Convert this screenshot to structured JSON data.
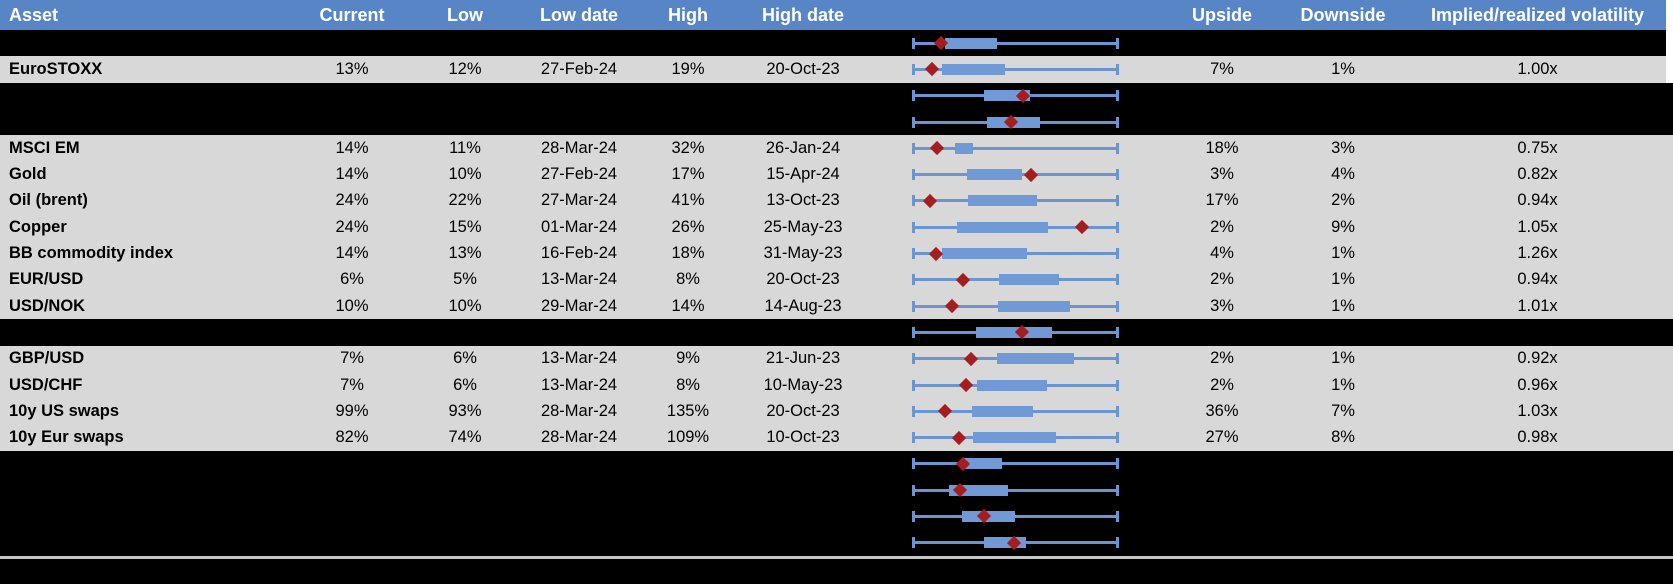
{
  "header": {
    "columns": [
      "Asset",
      "Current",
      "Low",
      "Low date",
      "High",
      "High date",
      "",
      "Upside",
      "Downside",
      "Implied/realized volatility"
    ]
  },
  "colors": {
    "header_bg": "#5885C6",
    "header_text": "#FFFFFF",
    "row_bg": "#D8D8D8",
    "page_bg": "#000000",
    "whisker_blue": "#6C94CE",
    "box_blue": "#7099D6",
    "marker_red": "#A41E21",
    "divider_gray": "#C6C6C6"
  },
  "rows": [
    {
      "type": "chart",
      "plot": {
        "box": [
          0.157,
          0.41
        ],
        "marker": 0.136
      }
    },
    {
      "type": "data",
      "asset": "EuroSTOXX",
      "current": "13%",
      "low": "12%",
      "low_date": "27-Feb-24",
      "high": "19%",
      "high_date": "20-Oct-23",
      "upside": "7%",
      "downside": "1%",
      "implied_realized": "1.00x",
      "plot": {
        "box": [
          0.14,
          0.45
        ],
        "marker": 0.095
      }
    },
    {
      "type": "chart",
      "plot": {
        "box": [
          0.345,
          0.57
        ],
        "marker": 0.537
      }
    },
    {
      "type": "chart",
      "plot": {
        "box": [
          0.36,
          0.62
        ],
        "marker": 0.478
      }
    },
    {
      "type": "data",
      "asset": "MSCI EM",
      "current": "14%",
      "low": "11%",
      "low_date": "28-Mar-24",
      "high": "32%",
      "high_date": "26-Jan-24",
      "upside": "18%",
      "downside": "3%",
      "implied_realized": "0.75x",
      "plot": {
        "box": [
          0.206,
          0.293
        ],
        "marker": 0.118
      }
    },
    {
      "type": "data",
      "asset": "Gold",
      "current": "14%",
      "low": "10%",
      "low_date": "27-Feb-24",
      "high": "17%",
      "high_date": "15-Apr-24",
      "upside": "3%",
      "downside": "4%",
      "implied_realized": "0.82x",
      "plot": {
        "box": [
          0.263,
          0.533
        ],
        "marker": 0.577
      }
    },
    {
      "type": "data",
      "asset": "Oil (brent)",
      "current": "24%",
      "low": "22%",
      "low_date": "27-Mar-24",
      "high": "41%",
      "high_date": "13-Oct-23",
      "upside": "17%",
      "downside": "2%",
      "implied_realized": "0.94x",
      "plot": {
        "box": [
          0.268,
          0.603
        ],
        "marker": 0.083
      }
    },
    {
      "type": "data",
      "asset": "Copper",
      "current": "24%",
      "low": "15%",
      "low_date": "01-Mar-24",
      "high": "26%",
      "high_date": "25-May-23",
      "upside": "2%",
      "downside": "9%",
      "implied_realized": "1.05x",
      "plot": {
        "box": [
          0.217,
          0.657
        ],
        "marker": 0.823
      }
    },
    {
      "type": "data",
      "asset": "BB commodity index",
      "current": "14%",
      "low": "13%",
      "low_date": "16-Feb-24",
      "high": "18%",
      "high_date": "31-May-23",
      "upside": "4%",
      "downside": "1%",
      "implied_realized": "1.26x",
      "plot": {
        "box": [
          0.141,
          0.558
        ],
        "marker": 0.111
      }
    },
    {
      "type": "data",
      "asset": "EUR/USD",
      "current": "6%",
      "low": "5%",
      "low_date": "13-Mar-24",
      "high": "8%",
      "high_date": "20-Oct-23",
      "upside": "2%",
      "downside": "1%",
      "implied_realized": "0.94x",
      "plot": {
        "box": [
          0.418,
          0.712
        ],
        "marker": 0.242
      }
    },
    {
      "type": "data",
      "asset": "USD/NOK",
      "current": "10%",
      "low": "10%",
      "low_date": "29-Mar-24",
      "high": "14%",
      "high_date": "14-Aug-23",
      "upside": "3%",
      "downside": "1%",
      "implied_realized": "1.01x",
      "plot": {
        "box": [
          0.415,
          0.765
        ],
        "marker": 0.19
      }
    },
    {
      "type": "chart",
      "plot": {
        "box": [
          0.309,
          0.677
        ],
        "marker": 0.533
      }
    },
    {
      "type": "data",
      "asset": "GBP/USD",
      "current": "7%",
      "low": "6%",
      "low_date": "13-Mar-24",
      "high": "9%",
      "high_date": "21-Jun-23",
      "upside": "2%",
      "downside": "1%",
      "implied_realized": "0.92x",
      "plot": {
        "box": [
          0.41,
          0.786
        ],
        "marker": 0.283
      }
    },
    {
      "type": "data",
      "asset": "USD/CHF",
      "current": "7%",
      "low": "6%",
      "low_date": "13-Mar-24",
      "high": "8%",
      "high_date": "10-May-23",
      "upside": "2%",
      "downside": "1%",
      "implied_realized": "0.96x",
      "plot": {
        "box": [
          0.312,
          0.655
        ],
        "marker": 0.26
      }
    },
    {
      "type": "data",
      "asset": "10y US swaps",
      "current": "99%",
      "low": "93%",
      "low_date": "28-Mar-24",
      "high": "135%",
      "high_date": "20-Oct-23",
      "upside": "36%",
      "downside": "7%",
      "implied_realized": "1.03x",
      "plot": {
        "box": [
          0.288,
          0.585
        ],
        "marker": 0.157
      }
    },
    {
      "type": "data",
      "asset": "10y Eur swaps",
      "current": "82%",
      "low": "74%",
      "low_date": "28-Mar-24",
      "high": "109%",
      "high_date": "10-Oct-23",
      "upside": "27%",
      "downside": "8%",
      "implied_realized": "0.98x",
      "plot": {
        "box": [
          0.293,
          0.696
        ],
        "marker": 0.222
      }
    },
    {
      "type": "chart",
      "plot": {
        "box": [
          0.239,
          0.435
        ],
        "marker": 0.242
      }
    },
    {
      "type": "chart",
      "plot": {
        "box": [
          0.178,
          0.464
        ],
        "marker": 0.227
      }
    },
    {
      "type": "chart",
      "plot": {
        "box": [
          0.239,
          0.497
        ],
        "marker": 0.345
      }
    },
    {
      "type": "chart",
      "plot": {
        "box": [
          0.345,
          0.549
        ],
        "marker": 0.492
      }
    }
  ],
  "chart_data": {
    "type": "boxplot",
    "orientation": "horizontal",
    "axis_range_normalized": [
      0,
      1
    ],
    "legend": "whiskers span full normalized low-high range per row; blue box = interquartile band; red diamond = current level",
    "series": [
      {
        "label": "",
        "whisker": [
          0,
          1
        ],
        "box": [
          0.157,
          0.41
        ],
        "marker": 0.136
      },
      {
        "label": "EuroSTOXX",
        "whisker": [
          0,
          1
        ],
        "box": [
          0.14,
          0.45
        ],
        "marker": 0.095
      },
      {
        "label": "",
        "whisker": [
          0,
          1
        ],
        "box": [
          0.345,
          0.57
        ],
        "marker": 0.537
      },
      {
        "label": "",
        "whisker": [
          0,
          1
        ],
        "box": [
          0.36,
          0.62
        ],
        "marker": 0.478
      },
      {
        "label": "MSCI EM",
        "whisker": [
          0,
          1
        ],
        "box": [
          0.206,
          0.293
        ],
        "marker": 0.118
      },
      {
        "label": "Gold",
        "whisker": [
          0,
          1
        ],
        "box": [
          0.263,
          0.533
        ],
        "marker": 0.577
      },
      {
        "label": "Oil (brent)",
        "whisker": [
          0,
          1
        ],
        "box": [
          0.268,
          0.603
        ],
        "marker": 0.083
      },
      {
        "label": "Copper",
        "whisker": [
          0,
          1
        ],
        "box": [
          0.217,
          0.657
        ],
        "marker": 0.823
      },
      {
        "label": "BB commodity index",
        "whisker": [
          0,
          1
        ],
        "box": [
          0.141,
          0.558
        ],
        "marker": 0.111
      },
      {
        "label": "EUR/USD",
        "whisker": [
          0,
          1
        ],
        "box": [
          0.418,
          0.712
        ],
        "marker": 0.242
      },
      {
        "label": "USD/NOK",
        "whisker": [
          0,
          1
        ],
        "box": [
          0.415,
          0.765
        ],
        "marker": 0.19
      },
      {
        "label": "",
        "whisker": [
          0,
          1
        ],
        "box": [
          0.309,
          0.677
        ],
        "marker": 0.533
      },
      {
        "label": "GBP/USD",
        "whisker": [
          0,
          1
        ],
        "box": [
          0.41,
          0.786
        ],
        "marker": 0.283
      },
      {
        "label": "USD/CHF",
        "whisker": [
          0,
          1
        ],
        "box": [
          0.312,
          0.655
        ],
        "marker": 0.26
      },
      {
        "label": "10y US swaps",
        "whisker": [
          0,
          1
        ],
        "box": [
          0.288,
          0.585
        ],
        "marker": 0.157
      },
      {
        "label": "10y Eur swaps",
        "whisker": [
          0,
          1
        ],
        "box": [
          0.293,
          0.696
        ],
        "marker": 0.222
      },
      {
        "label": "",
        "whisker": [
          0,
          1
        ],
        "box": [
          0.239,
          0.435
        ],
        "marker": 0.242
      },
      {
        "label": "",
        "whisker": [
          0,
          1
        ],
        "box": [
          0.178,
          0.464
        ],
        "marker": 0.227
      },
      {
        "label": "",
        "whisker": [
          0,
          1
        ],
        "box": [
          0.239,
          0.497
        ],
        "marker": 0.345
      },
      {
        "label": "",
        "whisker": [
          0,
          1
        ],
        "box": [
          0.345,
          0.549
        ],
        "marker": 0.492
      }
    ]
  }
}
